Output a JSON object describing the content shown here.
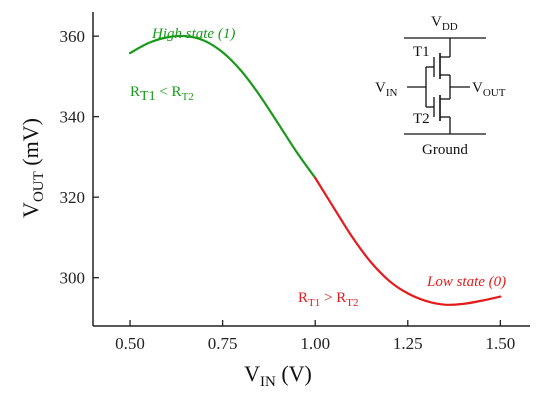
{
  "colors": {
    "high": "#1a9a1a",
    "low": "#e51b1b",
    "axis": "#222222"
  },
  "chart_data": {
    "type": "line",
    "x": [
      0.5,
      0.55,
      0.6,
      0.65,
      0.7,
      0.75,
      0.8,
      0.85,
      0.9,
      0.95,
      1.0,
      1.05,
      1.1,
      1.15,
      1.2,
      1.25,
      1.3,
      1.35,
      1.4,
      1.45,
      1.5
    ],
    "y": [
      355.8,
      358.3,
      359.7,
      360.0,
      358.9,
      356.0,
      351.4,
      345.3,
      338.3,
      331.2,
      324.8,
      317.4,
      310.1,
      303.9,
      299.2,
      296.1,
      294.2,
      293.3,
      293.5,
      294.3,
      295.3
    ],
    "split_x": 1.0,
    "segments": [
      {
        "from": 0.5,
        "to": 1.0,
        "color": "#1a9a1a"
      },
      {
        "from": 1.0,
        "to": 1.5,
        "color": "#e51b1b"
      }
    ],
    "xlim": [
      0.4,
      1.58
    ],
    "ylim": [
      288,
      366
    ],
    "xticks": [
      "0.50",
      "0.75",
      "1.00",
      "1.25",
      "1.50"
    ],
    "xtick_values": [
      0.5,
      0.75,
      1.0,
      1.25,
      1.5
    ],
    "yticks": [
      "300",
      "320",
      "340",
      "360"
    ],
    "ytick_values": [
      300,
      320,
      340,
      360
    ],
    "xlabel": {
      "main": "V",
      "sub": "IN",
      "unit": " (V)"
    },
    "ylabel": {
      "main": "V",
      "sub": "OUT",
      "unit": " (mV)"
    },
    "annotations": {
      "high_state": "High state (1)",
      "low_state": "Low state (0)",
      "high_cond": {
        "r1": "R",
        "s1": "T1",
        "op": " < ",
        "r2": "R",
        "s2": "T2"
      },
      "low_cond": {
        "r1": "R",
        "s1": "T1",
        "op": " > ",
        "r2": "R",
        "s2": "T2"
      }
    },
    "inset": {
      "vdd": {
        "main": "V",
        "sub": "DD"
      },
      "t1": "T1",
      "t2": "T2",
      "vin": {
        "main": "V",
        "sub": "IN"
      },
      "vout": {
        "main": "V",
        "sub": "OUT"
      },
      "ground": "Ground"
    }
  }
}
